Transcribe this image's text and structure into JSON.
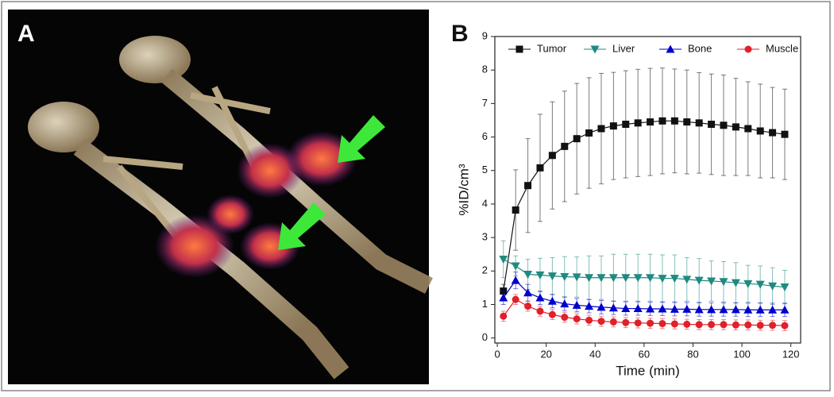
{
  "panel_labels": [
    "A",
    "B"
  ],
  "chart_data": {
    "type": "line",
    "x_label": "Time (min)",
    "y_label": "%ID/cm³",
    "x": [
      2.5,
      7.5,
      12.5,
      17.5,
      22.5,
      27.5,
      32.5,
      37.5,
      42.5,
      47.5,
      52.5,
      57.5,
      62.5,
      67.5,
      72.5,
      77.5,
      82.5,
      87.5,
      92.5,
      97.5,
      102.5,
      107.5,
      112.5,
      117.5
    ],
    "xlim": [
      -1,
      124
    ],
    "xticks": [
      0,
      20,
      40,
      60,
      80,
      100,
      120
    ],
    "ylim": [
      -0.15,
      9
    ],
    "yticks": [
      0,
      1,
      2,
      3,
      4,
      5,
      6,
      7,
      8,
      9
    ],
    "legend": "top",
    "series": [
      {
        "name": "Tumor",
        "color": "#111111",
        "marker": "square",
        "values": [
          1.4,
          3.82,
          4.55,
          5.08,
          5.45,
          5.72,
          5.95,
          6.12,
          6.25,
          6.33,
          6.38,
          6.42,
          6.45,
          6.48,
          6.48,
          6.45,
          6.42,
          6.38,
          6.35,
          6.3,
          6.25,
          6.18,
          6.13,
          6.08
        ],
        "errors": [
          0.2,
          1.2,
          1.4,
          1.6,
          1.6,
          1.65,
          1.65,
          1.65,
          1.65,
          1.6,
          1.6,
          1.6,
          1.6,
          1.58,
          1.55,
          1.55,
          1.5,
          1.5,
          1.5,
          1.45,
          1.4,
          1.4,
          1.35,
          1.35
        ]
      },
      {
        "name": "Liver",
        "color": "#1f8a80",
        "marker": "triangle-down",
        "values": [
          2.35,
          2.15,
          1.9,
          1.88,
          1.85,
          1.83,
          1.82,
          1.8,
          1.8,
          1.8,
          1.8,
          1.8,
          1.8,
          1.78,
          1.78,
          1.75,
          1.72,
          1.7,
          1.68,
          1.65,
          1.62,
          1.6,
          1.55,
          1.52
        ],
        "errors": [
          0.55,
          0.3,
          0.45,
          0.5,
          0.55,
          0.6,
          0.6,
          0.65,
          0.65,
          0.7,
          0.7,
          0.7,
          0.7,
          0.7,
          0.7,
          0.65,
          0.65,
          0.6,
          0.6,
          0.6,
          0.55,
          0.55,
          0.55,
          0.5
        ]
      },
      {
        "name": "Bone",
        "color": "#0000cc",
        "marker": "triangle-up",
        "values": [
          1.2,
          1.72,
          1.35,
          1.2,
          1.1,
          1.02,
          0.98,
          0.95,
          0.92,
          0.9,
          0.88,
          0.88,
          0.87,
          0.87,
          0.86,
          0.86,
          0.85,
          0.85,
          0.85,
          0.85,
          0.84,
          0.84,
          0.84,
          0.84
        ],
        "errors": [
          0.2,
          0.25,
          0.25,
          0.2,
          0.2,
          0.2,
          0.2,
          0.2,
          0.2,
          0.2,
          0.2,
          0.2,
          0.2,
          0.2,
          0.2,
          0.2,
          0.2,
          0.2,
          0.2,
          0.2,
          0.2,
          0.2,
          0.2,
          0.2
        ]
      },
      {
        "name": "Muscle",
        "color": "#e0202a",
        "marker": "circle",
        "values": [
          0.65,
          1.15,
          0.95,
          0.8,
          0.7,
          0.62,
          0.57,
          0.53,
          0.5,
          0.48,
          0.46,
          0.45,
          0.44,
          0.43,
          0.42,
          0.41,
          0.4,
          0.4,
          0.4,
          0.39,
          0.39,
          0.38,
          0.38,
          0.37
        ],
        "errors": [
          0.15,
          0.15,
          0.15,
          0.15,
          0.15,
          0.15,
          0.15,
          0.15,
          0.15,
          0.15,
          0.15,
          0.15,
          0.15,
          0.15,
          0.15,
          0.15,
          0.15,
          0.15,
          0.15,
          0.15,
          0.15,
          0.15,
          0.15,
          0.15
        ]
      }
    ]
  }
}
